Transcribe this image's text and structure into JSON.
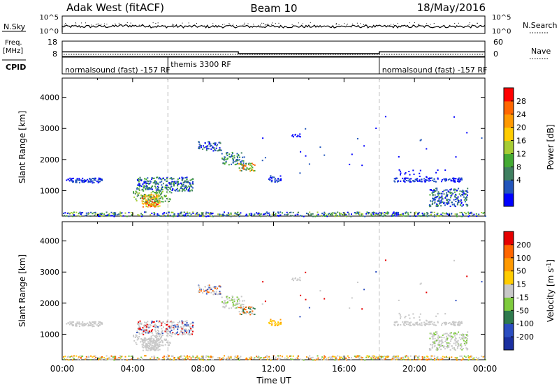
{
  "header": {
    "station": "Adak West (fitACF)",
    "beam": "Beam 10",
    "date": "18/May/2016"
  },
  "nsky_panel": {
    "left_label": "N.Sky",
    "right_label": "N.Search",
    "left_ticks": [
      "10^5",
      "10^0"
    ],
    "right_ticks": [
      "10^5",
      "10^0"
    ]
  },
  "freq_panel": {
    "left_label_line1": "Freq.",
    "left_label_line2": "[MHz]",
    "right_label": "Nave",
    "left_ticks": [
      "18",
      "8"
    ],
    "right_ticks": [
      "60",
      "0"
    ],
    "freq_steps": [
      {
        "start_h": 0,
        "end_h": 10.0,
        "value": 11.0
      },
      {
        "start_h": 10.0,
        "end_h": 18.0,
        "value": 9.8
      },
      {
        "start_h": 18.0,
        "end_h": 24.0,
        "value": 11.0
      }
    ],
    "nave_level": 0.0
  },
  "cpid_panel": {
    "label": "CPID",
    "segments": [
      {
        "start_h": 0,
        "text": "normalsound (fast) -157 RF"
      },
      {
        "start_h": 6.0,
        "text": "themis 3300 RF"
      },
      {
        "start_h": 18.0,
        "text": "normalsound (fast) -157 RF"
      }
    ]
  },
  "chart_data": [
    {
      "type": "heatmap",
      "name": "power",
      "ylabel": "Slant Range [km]",
      "yticks": [
        1000,
        2000,
        3000,
        4000
      ],
      "ylim": [
        180,
        4620
      ],
      "xlim": [
        0,
        24
      ],
      "colorbar": {
        "label": "Power [dB]",
        "ticks": [
          "28",
          "24",
          "20",
          "16",
          "12",
          "8",
          "4"
        ],
        "colors": [
          "#0000ff",
          "#2255bb",
          "#3f7f60",
          "#44aa33",
          "#a6cc33",
          "#ffcc00",
          "#ff9900",
          "#ff6600",
          "#ff0000"
        ]
      },
      "vertical_markers_h": [
        6,
        18
      ]
    },
    {
      "type": "heatmap",
      "name": "velocity",
      "ylabel": "Slant Range [km]",
      "yticks": [
        1000,
        2000,
        3000,
        4000
      ],
      "ylim": [
        180,
        4620
      ],
      "xlim": [
        0,
        24
      ],
      "xticks": [
        "00:00",
        "04:00",
        "08:00",
        "12:00",
        "16:00",
        "20:00",
        "00:00"
      ],
      "xlabel": "Time UT",
      "colorbar": {
        "label": "Velocity [m s",
        "label_sup": "-1",
        "label_end": "]",
        "ticks": [
          "200",
          "100",
          "50",
          "15",
          "-15",
          "-50",
          "-100",
          "-200"
        ],
        "colors": [
          "#1a2fa0",
          "#2b4dc0",
          "#2e7a4d",
          "#7ecb3d",
          "#c8c8c8",
          "#ffcc00",
          "#ff9900",
          "#ff6600",
          "#e60000"
        ]
      },
      "vertical_markers_h": [
        6,
        18
      ]
    }
  ]
}
